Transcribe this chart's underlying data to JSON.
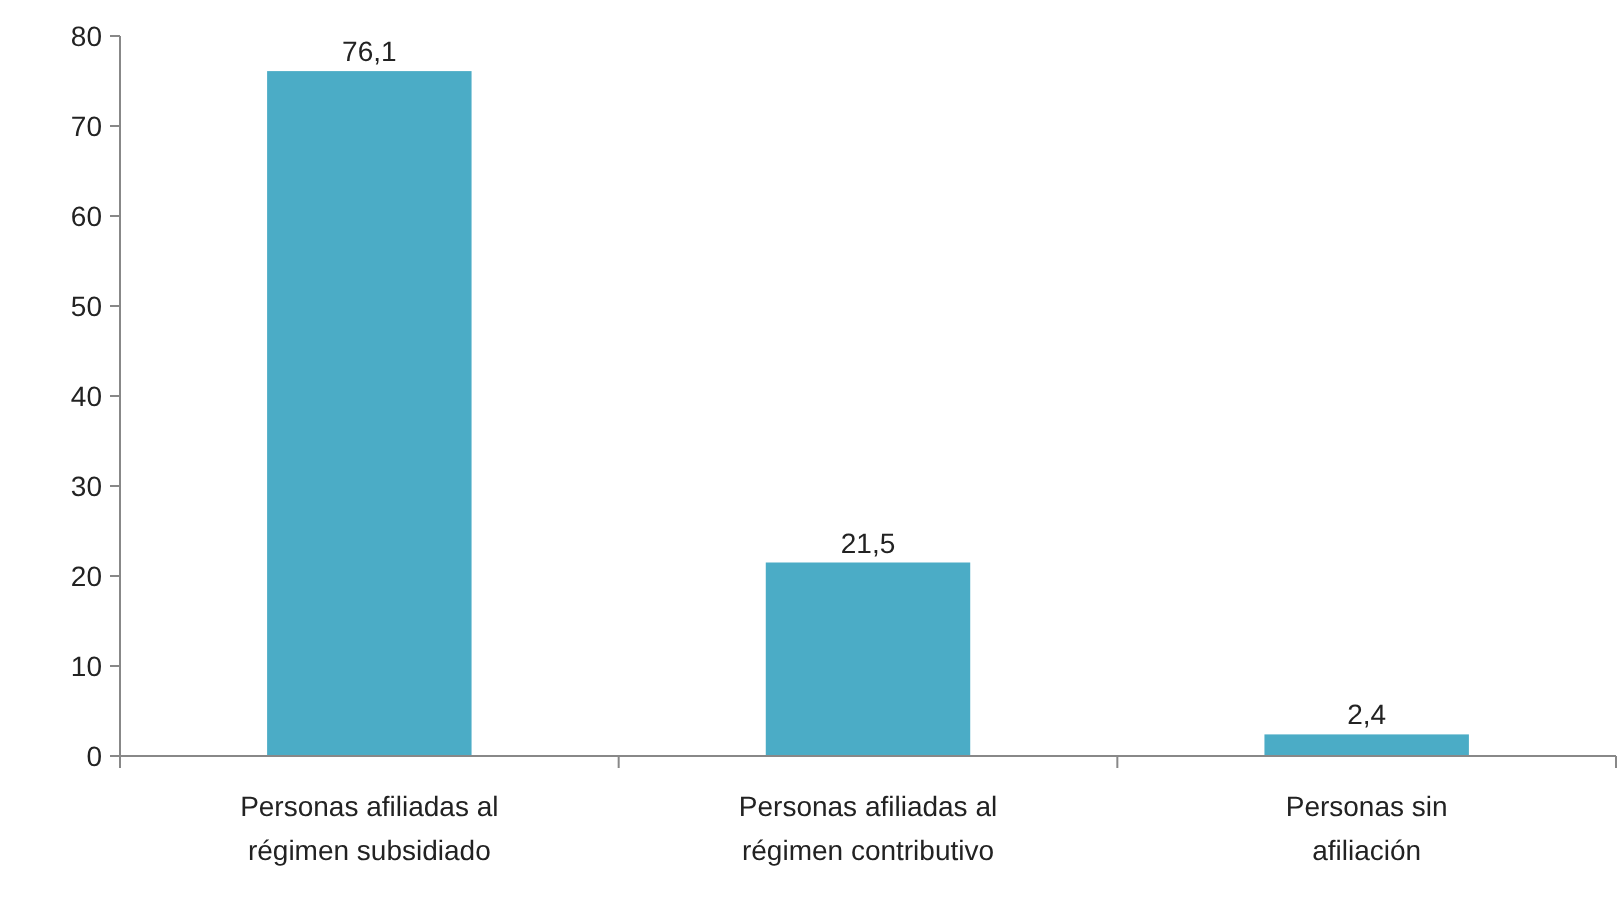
{
  "chart_data": {
    "type": "bar",
    "categories": [
      "Personas afiliadas al régimen subsidiado",
      "Personas afiliadas al régimen contributivo",
      "Personas sin afiliación"
    ],
    "values": [
      76.1,
      21.5,
      2.4
    ],
    "value_labels": [
      "76,1",
      "21,5",
      "2,4"
    ],
    "color": "#4bacc6",
    "ylim": [
      0,
      80
    ],
    "yticks": [
      0,
      10,
      20,
      30,
      40,
      50,
      60,
      70,
      80
    ],
    "grid": false
  }
}
